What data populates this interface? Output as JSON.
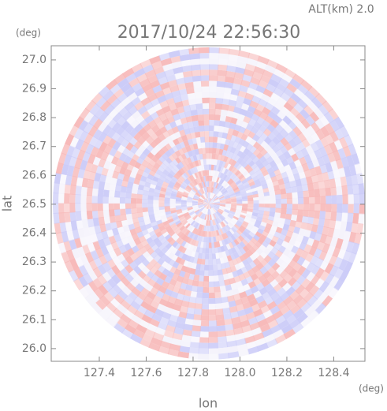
{
  "chart_data": {
    "type": "radar-ppi",
    "title": "2017/10/24 22:56:30",
    "subtitle": "ALT(km) 2.0",
    "x_label": "lon",
    "y_label": "lat",
    "x_unit": "(deg)",
    "y_unit": "(deg)",
    "xlim": [
      127.195,
      128.533
    ],
    "ylim": [
      25.956,
      27.049
    ],
    "xticks": [
      127.4,
      127.6,
      127.8,
      {
        "value": 128.0,
        "label": "128.0"
      },
      128.2,
      128.4
    ],
    "yticks": [
      {
        "value": 26.0,
        "label": "26.0"
      },
      26.1,
      26.2,
      26.3,
      26.4,
      26.5,
      26.6,
      26.7,
      26.8,
      26.9,
      {
        "value": 27.0,
        "label": "27.0"
      }
    ],
    "colors": [
      "#f7b9b9",
      "#ccccf8"
    ]
  }
}
